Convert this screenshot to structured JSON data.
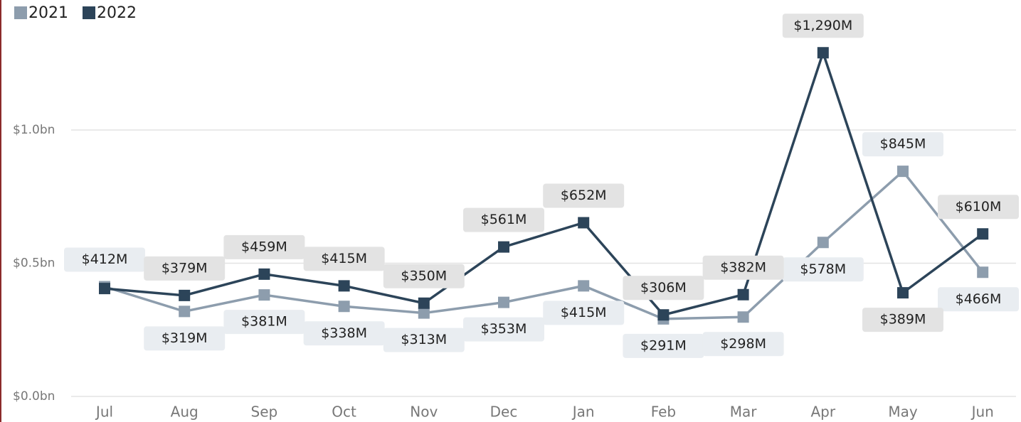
{
  "chart_data": {
    "type": "line",
    "categories": [
      "Jul",
      "Aug",
      "Sep",
      "Oct",
      "Nov",
      "Dec",
      "Jan",
      "Feb",
      "Mar",
      "Apr",
      "May",
      "Jun"
    ],
    "series": [
      {
        "name": "2021",
        "color": "#8d9dad",
        "values": [
          0.412,
          0.319,
          0.381,
          0.338,
          0.313,
          0.353,
          0.415,
          0.291,
          0.298,
          0.578,
          0.845,
          0.466
        ],
        "value_labels": [
          "$412M",
          "$319M",
          "$381M",
          "$338M",
          "$313M",
          "$353M",
          "$415M",
          "$291M",
          "$298M",
          "$578M",
          "$845M",
          "$466M"
        ]
      },
      {
        "name": "2022",
        "color": "#2c4459",
        "values": [
          0.405,
          0.379,
          0.459,
          0.415,
          0.35,
          0.561,
          0.652,
          0.306,
          0.382,
          1.29,
          0.389,
          0.61
        ],
        "value_labels": [
          null,
          "$379M",
          "$459M",
          "$415M",
          "$350M",
          "$561M",
          "$652M",
          "$306M",
          "$382M",
          "$1,290M",
          "$389M",
          "$610M"
        ]
      }
    ],
    "ylim": [
      0,
      1.4
    ],
    "yticks": [
      {
        "value": 0,
        "label": "$0.0bn"
      },
      {
        "value": 0.5,
        "label": "$0.5bn"
      },
      {
        "value": 1.0,
        "label": "$1.0bn"
      }
    ],
    "grid": true,
    "legend": "top-left"
  }
}
